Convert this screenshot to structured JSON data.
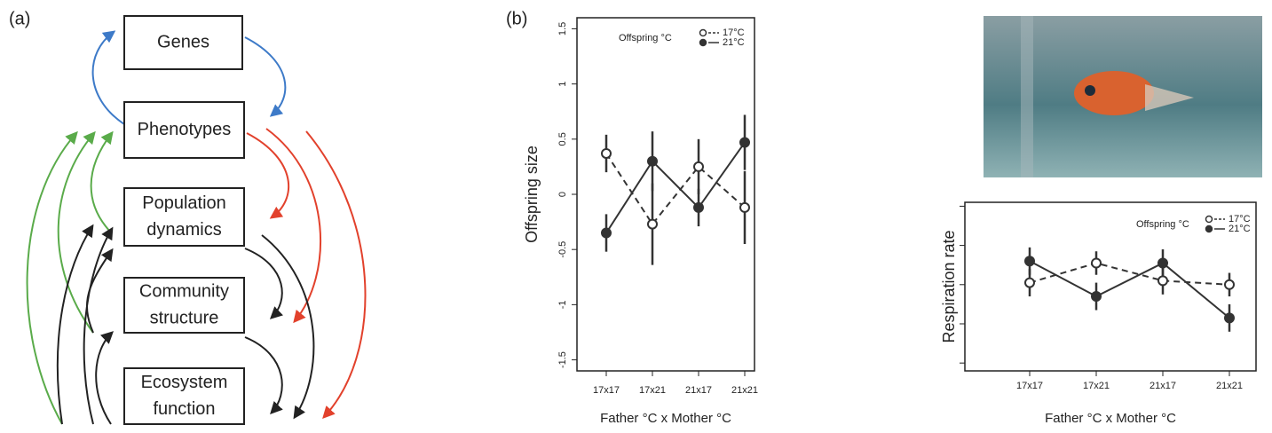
{
  "panel_a": {
    "label": "(a)",
    "nodes": [
      {
        "lines": [
          "Genes"
        ]
      },
      {
        "lines": [
          "Phenotypes"
        ]
      },
      {
        "lines": [
          "Population",
          "dynamics"
        ]
      },
      {
        "lines": [
          "Community",
          "structure"
        ]
      },
      {
        "lines": [
          "Ecosystem",
          "function"
        ]
      }
    ]
  },
  "chart_data": [
    {
      "type": "line",
      "panel_label": "(b)",
      "y_label": "Offspring size",
      "x_label": "Father °C x Mother °C",
      "legend_title": "Offspring °C",
      "categories": [
        "17x17",
        "17x21",
        "21x17",
        "21x21"
      ],
      "ylim": [
        -1.6,
        1.6
      ],
      "yticks": [
        -1.5,
        -1,
        -0.5,
        0,
        0.5,
        1,
        1.5
      ],
      "series": [
        {
          "name": "17°C",
          "color": "#333333",
          "line_style": "dashed",
          "marker": "open",
          "values": [
            0.37,
            -0.27,
            0.25,
            -0.12
          ],
          "errors": [
            0.17,
            0.37,
            0.25,
            0.33
          ]
        },
        {
          "name": "21°C",
          "color": "#333333",
          "line_style": "solid",
          "marker": "filled",
          "values": [
            -0.35,
            0.3,
            -0.12,
            0.47
          ],
          "errors": [
            0.17,
            0.27,
            0.17,
            0.25
          ]
        }
      ]
    },
    {
      "type": "line",
      "y_label": "Respiration rate",
      "x_label": "Father °C x Mother °C",
      "legend_title": "Offspring °C",
      "categories": [
        "17x17",
        "17x21",
        "21x17",
        "21x21"
      ],
      "ylim": [
        0.8,
        5.1
      ],
      "yticks": [
        1,
        2,
        3,
        4,
        5
      ],
      "series": [
        {
          "name": "17°C",
          "color": "#333333",
          "line_style": "dashed",
          "marker": "open",
          "values": [
            3.05,
            3.55,
            3.1,
            3.0
          ],
          "errors": [
            0.35,
            0.3,
            0.35,
            0.3
          ]
        },
        {
          "name": "21°C",
          "color": "#333333",
          "line_style": "solid",
          "marker": "filled",
          "values": [
            3.6,
            2.7,
            3.55,
            2.15
          ],
          "errors": [
            0.35,
            0.35,
            0.35,
            0.35
          ]
        }
      ]
    }
  ]
}
